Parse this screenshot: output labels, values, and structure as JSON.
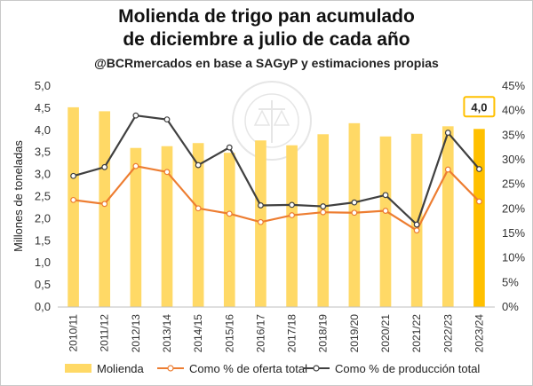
{
  "chart_data": {
    "type": "bar",
    "title_line1": "Molienda de trigo pan acumulado",
    "title_line2": "de diciembre a julio de cada año",
    "subtitle": "@BCRmercados en base a SAGyP y estimaciones propias",
    "ylabel": "Millones de toneladas",
    "ylim": [
      0,
      5
    ],
    "y2lim": [
      0,
      45
    ],
    "y_ticks": [
      "0,0",
      "0,5",
      "1,0",
      "1,5",
      "2,0",
      "2,5",
      "3,0",
      "3,5",
      "4,0",
      "4,5",
      "5,0"
    ],
    "y2_ticks": [
      "0%",
      "5%",
      "10%",
      "15%",
      "20%",
      "25%",
      "30%",
      "35%",
      "40%",
      "45%"
    ],
    "categories": [
      "2010/11",
      "2011/12",
      "2012/13",
      "2013/14",
      "2014/15",
      "2015/16",
      "2016/17",
      "2017/18",
      "2018/19",
      "2019/20",
      "2020/21",
      "2021/22",
      "2022/23",
      "2023/24"
    ],
    "grid": false,
    "legend_position": "bottom",
    "series": [
      {
        "name": "Molienda",
        "type": "bar",
        "axis": "left",
        "color": "#FFD966",
        "highlight_color": "#FFC000",
        "values": [
          4.52,
          4.43,
          3.6,
          3.64,
          3.71,
          3.49,
          3.77,
          3.66,
          3.91,
          4.16,
          3.86,
          3.92,
          4.09,
          4.03
        ]
      },
      {
        "name": "Como % de oferta total",
        "type": "line",
        "axis": "right",
        "color": "#ED7D31",
        "values": [
          21.8,
          21.0,
          28.7,
          27.5,
          20.1,
          19.0,
          17.3,
          18.7,
          19.3,
          19.2,
          19.6,
          15.6,
          28.0,
          21.5
        ]
      },
      {
        "name": "Como % de producción total",
        "type": "line",
        "axis": "right",
        "color": "#404040",
        "values": [
          26.7,
          28.5,
          39.0,
          38.2,
          28.9,
          32.5,
          20.7,
          20.8,
          20.5,
          21.3,
          22.8,
          16.8,
          35.5,
          28.1
        ]
      }
    ],
    "annotation": {
      "text": "4,0",
      "category": "2023/24",
      "box_color": "#FFC000"
    },
    "watermark": "BOLSA DE COMERCIO DE ROSARIO"
  }
}
